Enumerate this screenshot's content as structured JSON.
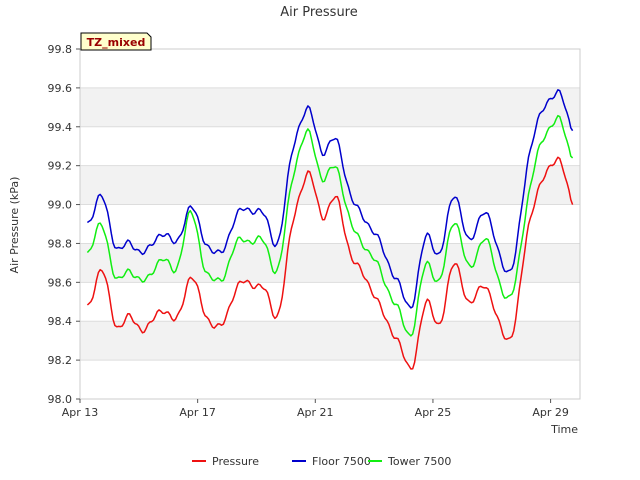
{
  "chart_data": {
    "type": "line",
    "title": "Air Pressure",
    "xlabel": "Time",
    "ylabel": "Air Pressure (kPa)",
    "annotation": "TZ_mixed",
    "xlim": [
      "2023-04-13",
      "2023-04-30"
    ],
    "ylim": [
      98.0,
      99.8
    ],
    "x_ticks": [
      {
        "date": "2023-04-13",
        "label": "Apr 13"
      },
      {
        "date": "2023-04-17",
        "label": "Apr 17"
      },
      {
        "date": "2023-04-21",
        "label": "Apr 21"
      },
      {
        "date": "2023-04-25",
        "label": "Apr 25"
      },
      {
        "date": "2023-04-29",
        "label": "Apr 29"
      }
    ],
    "y_ticks": [
      98.0,
      98.2,
      98.4,
      98.6,
      98.8,
      99.0,
      99.2,
      99.4,
      99.6,
      99.8
    ],
    "grid": true,
    "legend_position": "bottom",
    "x": [
      "2023-04-13T06:00",
      "2023-04-13T18:00",
      "2023-04-14T06:00",
      "2023-04-14T18:00",
      "2023-04-15T06:00",
      "2023-04-15T18:00",
      "2023-04-16T06:00",
      "2023-04-16T18:00",
      "2023-04-17T06:00",
      "2023-04-17T18:00",
      "2023-04-18T06:00",
      "2023-04-18T18:00",
      "2023-04-19T06:00",
      "2023-04-19T18:00",
      "2023-04-20T06:00",
      "2023-04-20T18:00",
      "2023-04-21T06:00",
      "2023-04-21T18:00",
      "2023-04-22T06:00",
      "2023-04-22T18:00",
      "2023-04-23T06:00",
      "2023-04-23T18:00",
      "2023-04-24T06:00",
      "2023-04-24T18:00",
      "2023-04-25T06:00",
      "2023-04-25T18:00",
      "2023-04-26T06:00",
      "2023-04-26T18:00",
      "2023-04-27T06:00",
      "2023-04-27T18:00",
      "2023-04-28T06:00",
      "2023-04-28T18:00",
      "2023-04-29T06:00",
      "2023-04-29T18:00"
    ],
    "series": [
      {
        "name": "Pressure",
        "color": "#ee1111",
        "values": [
          98.48,
          98.65,
          98.38,
          98.42,
          98.35,
          98.47,
          98.4,
          98.62,
          98.45,
          98.36,
          98.55,
          98.6,
          98.56,
          98.45,
          98.92,
          99.15,
          98.95,
          99.02,
          98.72,
          98.62,
          98.45,
          98.32,
          98.16,
          98.48,
          98.4,
          98.7,
          98.48,
          98.6,
          98.38,
          98.36,
          98.9,
          99.12,
          99.24,
          99.0
        ]
      },
      {
        "name": "Floor 7500",
        "color": "#0000cc",
        "values": [
          98.91,
          99.03,
          98.78,
          98.8,
          98.75,
          98.86,
          98.8,
          98.98,
          98.82,
          98.74,
          98.92,
          98.98,
          98.94,
          98.82,
          99.3,
          99.48,
          99.28,
          99.32,
          99.02,
          98.92,
          98.78,
          98.62,
          98.48,
          98.82,
          98.76,
          99.05,
          98.8,
          98.98,
          98.74,
          98.7,
          99.25,
          99.48,
          99.58,
          99.38
        ]
      },
      {
        "name": "Tower 7500",
        "color": "#11ee11",
        "values": [
          98.76,
          98.88,
          98.62,
          98.66,
          98.6,
          98.73,
          98.66,
          98.95,
          98.68,
          98.6,
          98.78,
          98.82,
          98.8,
          98.68,
          99.16,
          99.36,
          99.14,
          99.18,
          98.88,
          98.78,
          98.64,
          98.48,
          98.34,
          98.68,
          98.62,
          98.92,
          98.66,
          98.84,
          98.6,
          98.56,
          99.06,
          99.33,
          99.44,
          99.24
        ]
      }
    ]
  }
}
